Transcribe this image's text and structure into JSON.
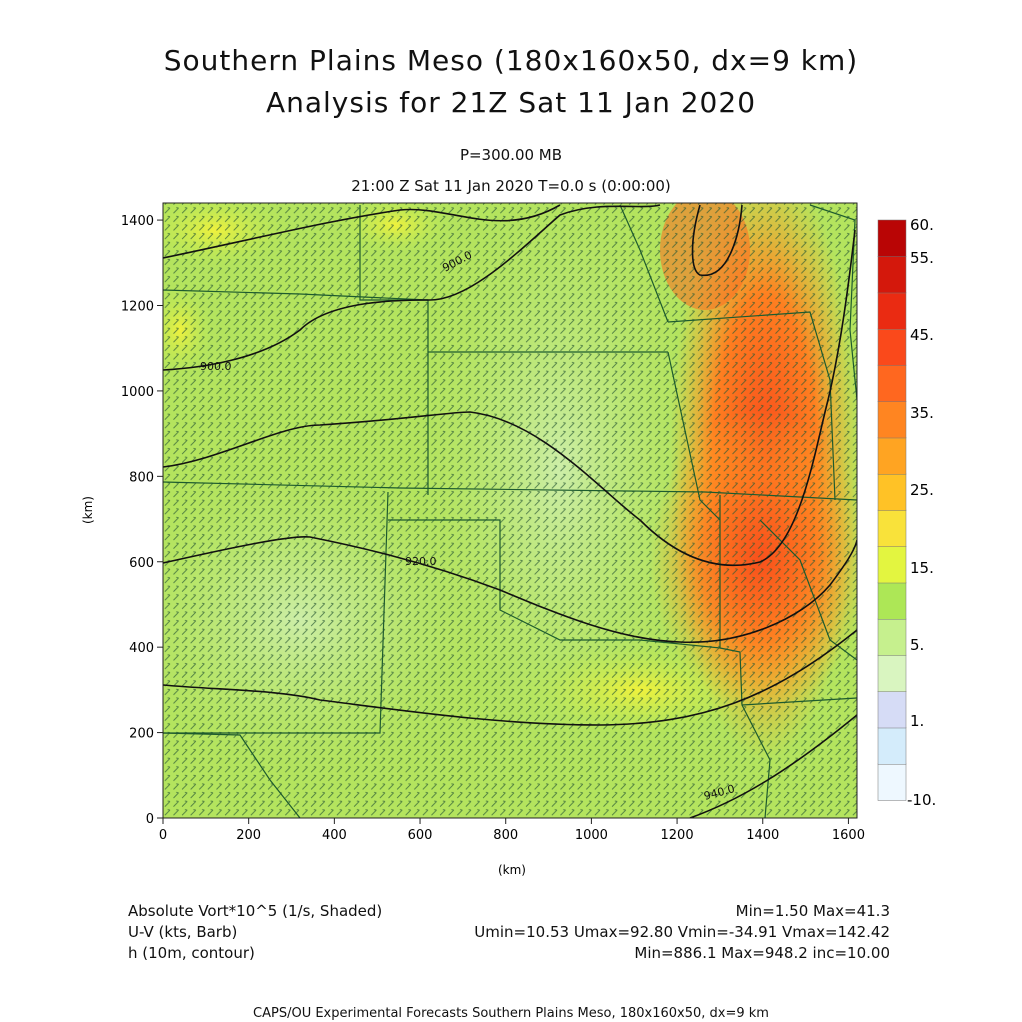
{
  "header": {
    "title_line1": "Southern Plains Meso (180x160x50, dx=9 km)",
    "title_line2": "Analysis for 21Z Sat 11 Jan 2020",
    "level": "P=300.00 MB",
    "time": "21:00 Z Sat 11 Jan 2020    T=0.0 s (0:00:00)"
  },
  "chart_data": {
    "type": "heatmap",
    "xlabel": "(km)",
    "ylabel": "(km)",
    "xlim": [
      0,
      1620
    ],
    "ylim": [
      0,
      1440
    ],
    "x_ticks": [
      0,
      200,
      400,
      600,
      800,
      1000,
      1200,
      1400,
      1600
    ],
    "y_ticks": [
      0,
      200,
      400,
      600,
      800,
      1000,
      1200,
      1400
    ],
    "colorbar": {
      "labels": [
        "-10.",
        "1.",
        "5.",
        "15.",
        "25.",
        "35.",
        "45.",
        "55.",
        "60."
      ],
      "colors": [
        "#eef8ff",
        "#d4ecfb",
        "#d6dcf6",
        "#d9f5c0",
        "#c6f08e",
        "#ade756",
        "#e3f540",
        "#f9e23a",
        "#ffc226",
        "#ffa422",
        "#ff8521",
        "#ff671f",
        "#fa491b",
        "#ea2b12",
        "#d4180c",
        "#b90505"
      ]
    },
    "contour_labels": [
      "900.0",
      "900.0",
      "920.0",
      "940.0"
    ],
    "contour_units": "h (10m)",
    "grid": false
  },
  "footer": {
    "vort_label": "Absolute Vort*10^5 (1/s, Shaded)",
    "vort_stats": "Min=1.50 Max=41.3",
    "wind_label": "U-V (kts, Barb)",
    "wind_stats": "Umin=10.53 Umax=92.80 Vmin=-34.91 Vmax=142.42",
    "height_label": "h (10m, contour)",
    "height_stats": "Min=886.1 Max=948.2 inc=10.00",
    "credit": "CAPS/OU Experimental Forecasts   Southern Plains Meso, 180x160x50, dx=9 km"
  }
}
